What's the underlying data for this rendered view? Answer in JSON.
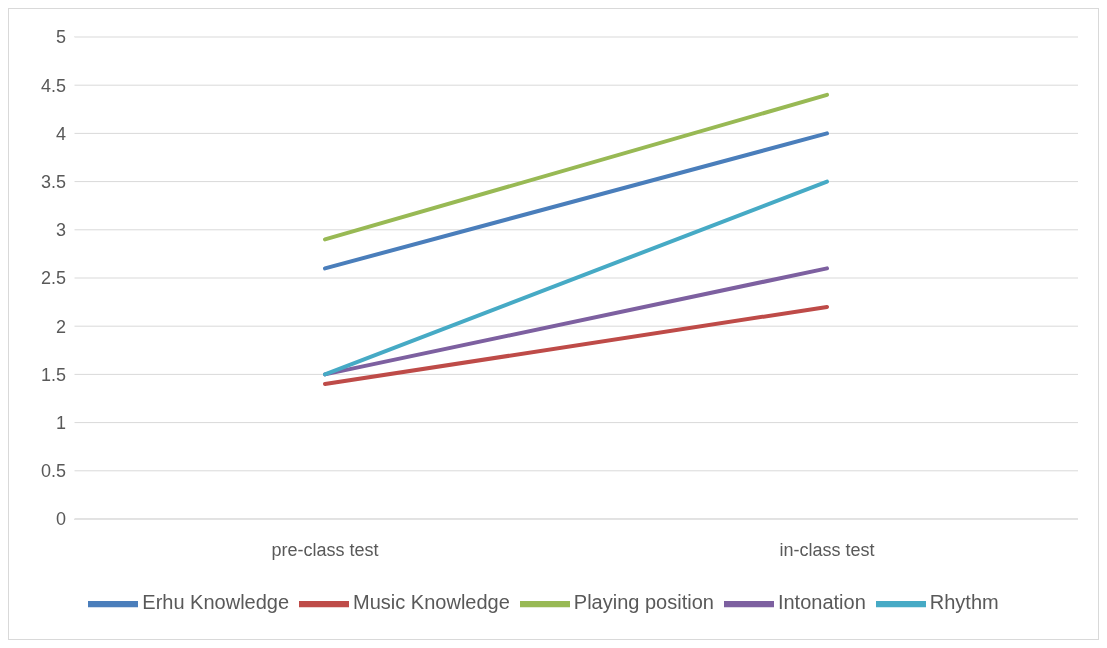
{
  "chart_data": {
    "type": "line",
    "categories": [
      "pre-class test",
      "in-class test"
    ],
    "series": [
      {
        "name": "Erhu Knowledge",
        "color": "#4a7ebb",
        "values": [
          2.6,
          4.0
        ]
      },
      {
        "name": "Music Knowledge",
        "color": "#be4b48",
        "values": [
          1.4,
          2.2
        ]
      },
      {
        "name": "Playing position",
        "color": "#98b954",
        "values": [
          2.9,
          4.4
        ]
      },
      {
        "name": "Intonation",
        "color": "#7d60a0",
        "values": [
          1.5,
          2.6
        ]
      },
      {
        "name": "Rhythm",
        "color": "#46aac5",
        "values": [
          1.5,
          3.5
        ]
      }
    ],
    "ylim": [
      0,
      5
    ],
    "yticks": [
      0,
      0.5,
      1,
      1.5,
      2,
      2.5,
      3,
      3.5,
      4,
      4.5,
      5
    ],
    "grid": "y",
    "legend": "bottom",
    "marker": "none",
    "line_style": "solid"
  }
}
